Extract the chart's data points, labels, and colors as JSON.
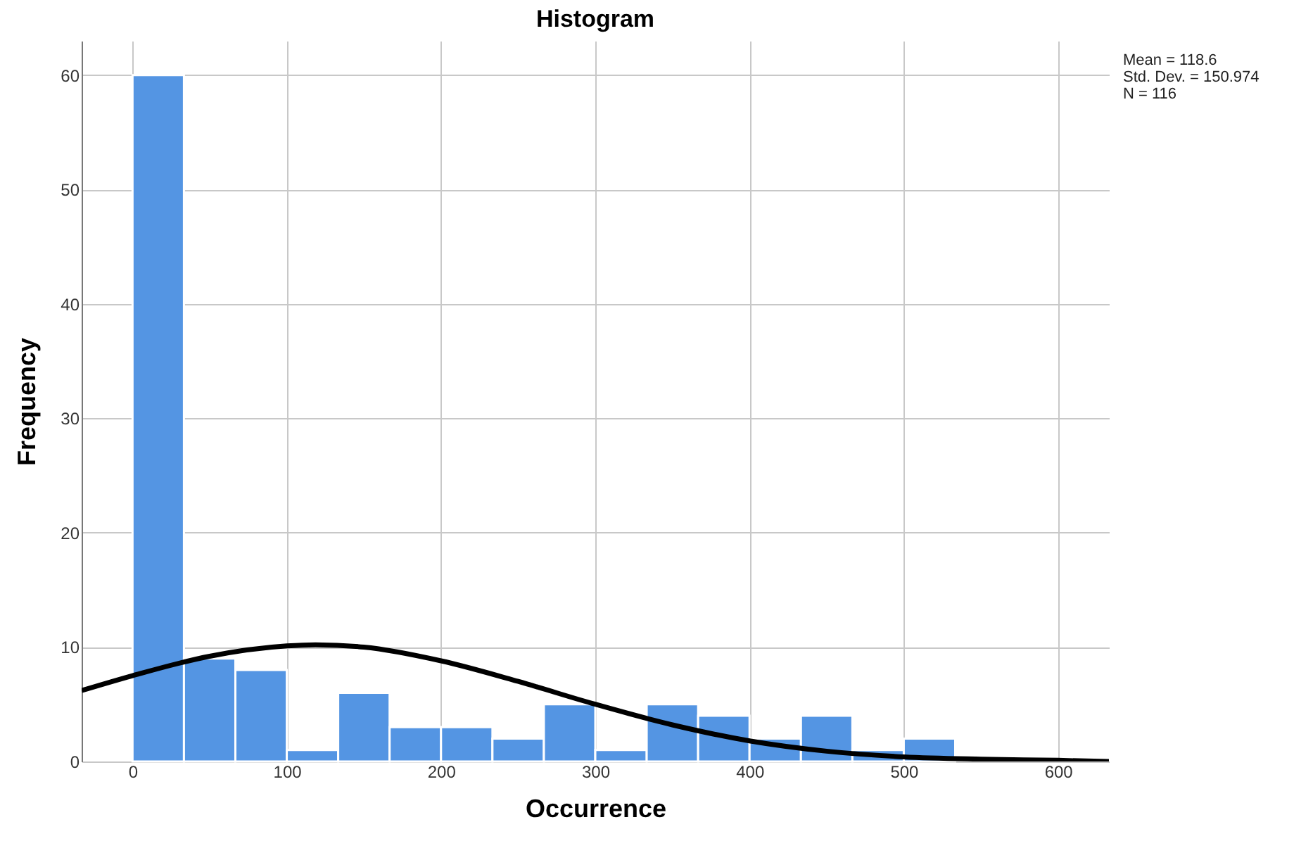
{
  "chart_data": {
    "type": "histogram",
    "title": "Histogram",
    "xlabel": "Occurrence",
    "ylabel": "Frequency",
    "bins": [
      0,
      33.33,
      66.67,
      100,
      133.33,
      166.67,
      200,
      233.33,
      266.67,
      300,
      333.33,
      366.67,
      400,
      433.33,
      466.67,
      500,
      533.33
    ],
    "values": [
      60,
      9,
      8,
      1,
      6,
      3,
      3,
      2,
      5,
      1,
      5,
      4,
      2,
      4,
      1,
      2
    ],
    "color": "#5495e3",
    "series": [
      {
        "type": "line",
        "color": "#000000",
        "x": [
          -33,
          0,
          50,
          100,
          118.6,
          150,
          200,
          250,
          300,
          350,
          400,
          450,
          500,
          550,
          600,
          633
        ],
        "values": [
          6.2,
          7.5,
          9.2,
          10.1,
          10.2,
          10.0,
          8.8,
          7.0,
          5.0,
          3.2,
          1.8,
          0.9,
          0.4,
          0.2,
          0.1,
          0.0
        ]
      }
    ],
    "xlim": [
      -33,
      633
    ],
    "xticks": [
      0,
      100,
      200,
      300,
      400,
      500,
      600
    ],
    "ylim": [
      0,
      63
    ],
    "yticks": [
      0,
      10,
      20,
      30,
      40,
      50,
      60
    ],
    "grid": true,
    "annotations": [
      "Mean = 118.6",
      "Std. Dev. = 150.974",
      "N = 116"
    ]
  }
}
